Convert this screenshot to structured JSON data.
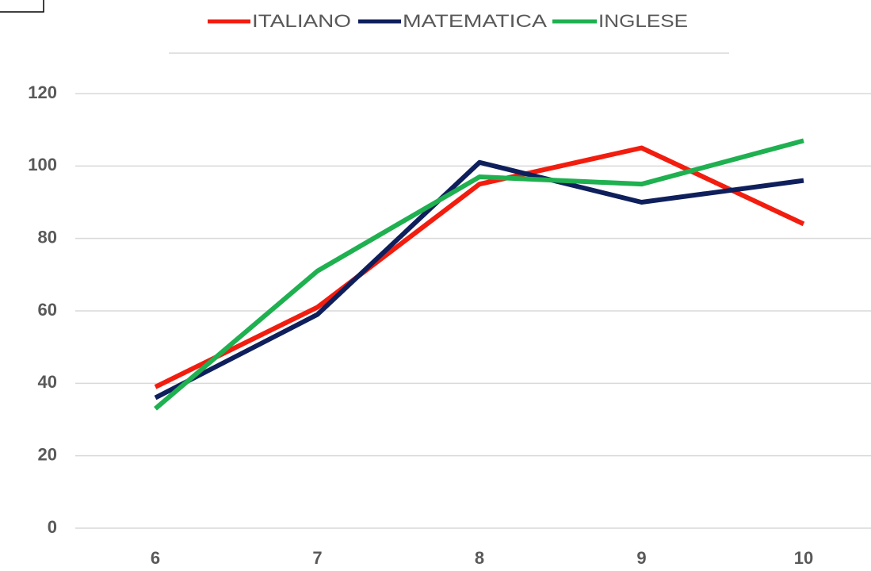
{
  "chart_data": {
    "type": "line",
    "categories": [
      "6",
      "7",
      "8",
      "9",
      "10"
    ],
    "series": [
      {
        "name": "ITALIANO",
        "color": "#f21d0e",
        "values": [
          39,
          61,
          95,
          105,
          84
        ]
      },
      {
        "name": "MATEMATICA",
        "color": "#0e1f5c",
        "values": [
          36,
          59,
          101,
          90,
          96
        ]
      },
      {
        "name": "INGLESE",
        "color": "#1fb050",
        "values": [
          33,
          71,
          97,
          95,
          107
        ]
      }
    ],
    "ylim": [
      0,
      120
    ],
    "yticks": [
      0,
      20,
      40,
      60,
      80,
      100,
      120
    ],
    "grid": true,
    "legend": "top"
  }
}
